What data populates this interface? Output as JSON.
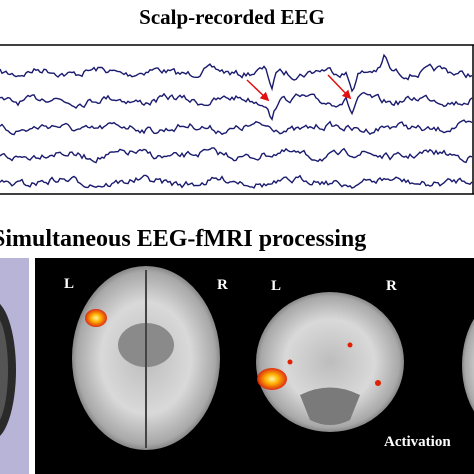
{
  "header": {
    "title": "Scalp-recorded EEG"
  },
  "section": {
    "title": "Simultaneous EEG-fMRI processing"
  },
  "images": [
    {
      "left_label": "L",
      "right_label": "R"
    },
    {
      "left_label": "L",
      "right_label": "R"
    }
  ],
  "caption": "Activation"
}
